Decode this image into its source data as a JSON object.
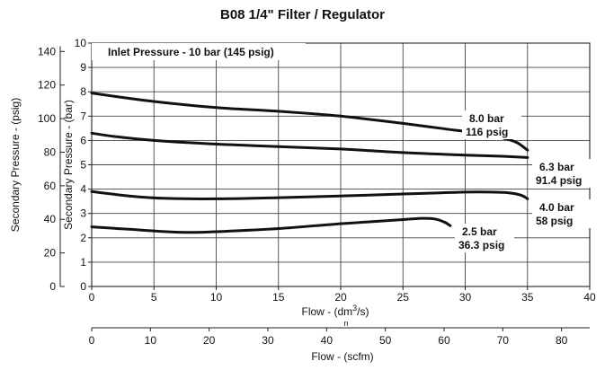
{
  "chart_data": {
    "type": "line",
    "title": "B08 1/4\" Filter / Regulator",
    "annotation": "Inlet Pressure - 10 bar (145 psig)",
    "xlabel": "Flow - (dm",
    "xlabel_sup": "3",
    "xlabel_tail": "/s)",
    "xlabel_sub": "n",
    "xlim": [
      0,
      40
    ],
    "x_ticks": [
      "0",
      "5",
      "10",
      "15",
      "20",
      "25",
      "30",
      "35",
      "40"
    ],
    "ylabel": "Secondary Pressure - (bar)",
    "ylim": [
      0,
      10
    ],
    "y_ticks": [
      "0",
      "1",
      "2",
      "3",
      "4",
      "5",
      "6",
      "7",
      "8",
      "9",
      "10"
    ],
    "y2label": "Secondary Pressure - (psig)",
    "y2lim": [
      0,
      145
    ],
    "y2_ticks": [
      "0",
      "20",
      "40",
      "60",
      "80",
      "100",
      "120",
      "140"
    ],
    "x2label": "Flow - (scfm)",
    "x2lim": [
      0,
      84.8
    ],
    "x2_ticks": [
      "0",
      "10",
      "20",
      "30",
      "40",
      "50",
      "60",
      "70",
      "80"
    ],
    "grid": true,
    "series": [
      {
        "name": "8.0 bar",
        "label_line1": "8.0 bar",
        "label_line2": "116 psig",
        "x": [
          0,
          2,
          5,
          10,
          15,
          20,
          25,
          28,
          31,
          33,
          34,
          34.5,
          35
        ],
        "y": [
          7.95,
          7.8,
          7.6,
          7.35,
          7.2,
          7.0,
          6.7,
          6.5,
          6.3,
          6.1,
          5.95,
          5.8,
          5.6
        ]
      },
      {
        "name": "6.3 bar",
        "label_line1": "6.3 bar",
        "label_line2": "91.4 psig",
        "x": [
          0,
          2,
          5,
          10,
          15,
          20,
          25,
          30,
          33,
          35
        ],
        "y": [
          6.3,
          6.15,
          6.0,
          5.85,
          5.75,
          5.65,
          5.5,
          5.4,
          5.35,
          5.3
        ]
      },
      {
        "name": "4.0 bar",
        "label_line1": "4.0 bar",
        "label_line2": "58 psig",
        "x": [
          0,
          3,
          6,
          10,
          15,
          20,
          25,
          28,
          30,
          32,
          33.5,
          34.5,
          35
        ],
        "y": [
          3.9,
          3.72,
          3.62,
          3.6,
          3.65,
          3.72,
          3.8,
          3.85,
          3.88,
          3.88,
          3.85,
          3.75,
          3.6
        ]
      },
      {
        "name": "2.5 bar",
        "label_line1": "2.5 bar",
        "label_line2": "36.3 psig",
        "x": [
          0,
          3,
          6,
          8,
          10,
          15,
          20,
          23,
          25,
          26.5,
          27.5,
          28.3,
          28.8
        ],
        "y": [
          2.45,
          2.35,
          2.25,
          2.22,
          2.25,
          2.38,
          2.58,
          2.68,
          2.75,
          2.8,
          2.78,
          2.65,
          2.5
        ]
      }
    ]
  }
}
